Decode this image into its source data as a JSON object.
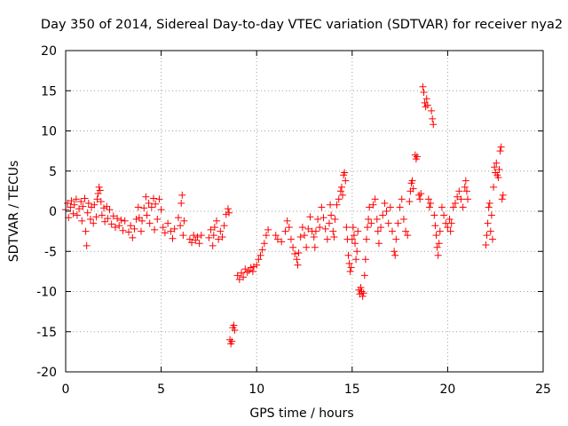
{
  "chart_data": {
    "type": "scatter",
    "title": "Day 350 of 2014, Sidereal Day-to-day VTEC variation (SDTVAR) for receiver nya2",
    "xlabel": "GPS time / hours",
    "ylabel": "SDTVAR / TECUs",
    "xlim": [
      0,
      25
    ],
    "ylim": [
      -20,
      20
    ],
    "xticks": [
      0,
      5,
      10,
      15,
      20,
      25
    ],
    "yticks": [
      -20,
      -15,
      -10,
      -5,
      0,
      5,
      10,
      15,
      20
    ],
    "grid": true,
    "marker": "+",
    "color": "#ff0000",
    "series": [
      {
        "name": "nya2",
        "points": [
          [
            0.0,
            0.2
          ],
          [
            0.1,
            1.0
          ],
          [
            0.15,
            -0.8
          ],
          [
            0.25,
            0.5
          ],
          [
            0.3,
            1.3
          ],
          [
            0.4,
            -0.3
          ],
          [
            0.45,
            0.8
          ],
          [
            0.55,
            1.5
          ],
          [
            0.6,
            -0.5
          ],
          [
            0.7,
            0.3
          ],
          [
            0.8,
            1.2
          ],
          [
            0.85,
            -1.2
          ],
          [
            0.9,
            0.6
          ],
          [
            1.0,
            1.6
          ],
          [
            1.05,
            -2.5
          ],
          [
            1.1,
            -4.3
          ],
          [
            1.15,
            -0.2
          ],
          [
            1.2,
            1.0
          ],
          [
            1.3,
            -1.0
          ],
          [
            1.35,
            0.5
          ],
          [
            1.45,
            -1.5
          ],
          [
            1.5,
            0.8
          ],
          [
            1.6,
            -0.7
          ],
          [
            1.65,
            1.5
          ],
          [
            1.7,
            2.2
          ],
          [
            1.75,
            3.0
          ],
          [
            1.8,
            2.6
          ],
          [
            1.85,
            1.2
          ],
          [
            1.9,
            -0.5
          ],
          [
            2.0,
            0.4
          ],
          [
            2.05,
            -1.3
          ],
          [
            2.15,
            0.6
          ],
          [
            2.2,
            -0.9
          ],
          [
            2.3,
            0.2
          ],
          [
            2.4,
            -1.6
          ],
          [
            2.5,
            -0.6
          ],
          [
            2.6,
            -2.0
          ],
          [
            2.7,
            -0.9
          ],
          [
            2.8,
            -1.8
          ],
          [
            2.9,
            -1.1
          ],
          [
            3.0,
            -2.4
          ],
          [
            3.1,
            -1.2
          ],
          [
            3.3,
            -2.6
          ],
          [
            3.4,
            -1.8
          ],
          [
            3.5,
            -3.3
          ],
          [
            3.6,
            -2.2
          ],
          [
            3.7,
            -1.0
          ],
          [
            3.8,
            0.5
          ],
          [
            3.85,
            -0.8
          ],
          [
            3.95,
            -2.5
          ],
          [
            4.0,
            -1.2
          ],
          [
            4.1,
            0.4
          ],
          [
            4.2,
            1.8
          ],
          [
            4.25,
            -0.5
          ],
          [
            4.35,
            1.0
          ],
          [
            4.4,
            -1.5
          ],
          [
            4.5,
            0.5
          ],
          [
            4.6,
            1.6
          ],
          [
            4.65,
            -2.3
          ],
          [
            4.7,
            0.9
          ],
          [
            4.8,
            -1.0
          ],
          [
            4.9,
            1.5
          ],
          [
            5.0,
            0.2
          ],
          [
            5.1,
            -2.0
          ],
          [
            5.2,
            -2.7
          ],
          [
            5.35,
            -1.5
          ],
          [
            5.5,
            -2.5
          ],
          [
            5.6,
            -3.4
          ],
          [
            5.7,
            -2.2
          ],
          [
            5.9,
            -0.8
          ],
          [
            6.0,
            -1.8
          ],
          [
            6.05,
            1.0
          ],
          [
            6.1,
            2.0
          ],
          [
            6.15,
            -3.0
          ],
          [
            6.2,
            -1.2
          ],
          [
            6.5,
            -3.5
          ],
          [
            6.6,
            -3.9
          ],
          [
            6.7,
            -3.0
          ],
          [
            6.8,
            -3.6
          ],
          [
            6.9,
            -3.2
          ],
          [
            7.0,
            -4.0
          ],
          [
            7.1,
            -3.0
          ],
          [
            7.5,
            -3.3
          ],
          [
            7.6,
            -2.3
          ],
          [
            7.7,
            -4.3
          ],
          [
            7.75,
            -3.0
          ],
          [
            7.8,
            -2.0
          ],
          [
            7.9,
            -1.2
          ],
          [
            8.0,
            -3.5
          ],
          [
            8.1,
            -2.5
          ],
          [
            8.2,
            -3.2
          ],
          [
            8.3,
            -1.8
          ],
          [
            8.4,
            -0.4
          ],
          [
            8.5,
            0.3
          ],
          [
            8.55,
            -0.2
          ],
          [
            8.6,
            -16.0
          ],
          [
            8.65,
            -16.5
          ],
          [
            8.7,
            -16.2
          ],
          [
            8.75,
            -14.5
          ],
          [
            8.8,
            -14.2
          ],
          [
            8.85,
            -14.8
          ],
          [
            9.0,
            -8.0
          ],
          [
            9.1,
            -8.5
          ],
          [
            9.2,
            -7.7
          ],
          [
            9.3,
            -8.2
          ],
          [
            9.4,
            -7.2
          ],
          [
            9.5,
            -7.6
          ],
          [
            9.6,
            -7.4
          ],
          [
            9.7,
            -7.0
          ],
          [
            9.8,
            -7.5
          ],
          [
            9.85,
            -6.9
          ],
          [
            10.0,
            -6.7
          ],
          [
            10.1,
            -6.0
          ],
          [
            10.2,
            -5.5
          ],
          [
            10.3,
            -4.8
          ],
          [
            10.4,
            -4.0
          ],
          [
            10.5,
            -3.0
          ],
          [
            10.6,
            -2.3
          ],
          [
            11.0,
            -3.0
          ],
          [
            11.1,
            -3.5
          ],
          [
            11.3,
            -3.8
          ],
          [
            11.5,
            -2.5
          ],
          [
            11.6,
            -1.2
          ],
          [
            11.7,
            -2.0
          ],
          [
            11.8,
            -3.5
          ],
          [
            11.9,
            -4.5
          ],
          [
            12.0,
            -5.3
          ],
          [
            12.1,
            -6.0
          ],
          [
            12.15,
            -6.7
          ],
          [
            12.2,
            -5.2
          ],
          [
            12.3,
            -3.2
          ],
          [
            12.4,
            -2.0
          ],
          [
            12.5,
            -3.0
          ],
          [
            12.6,
            -4.5
          ],
          [
            12.7,
            -2.2
          ],
          [
            12.8,
            -0.7
          ],
          [
            12.9,
            -2.5
          ],
          [
            13.0,
            -3.2
          ],
          [
            13.05,
            -4.5
          ],
          [
            13.1,
            -2.5
          ],
          [
            13.2,
            -1.0
          ],
          [
            13.3,
            -2.0
          ],
          [
            13.4,
            0.5
          ],
          [
            13.5,
            -0.8
          ],
          [
            13.6,
            -2.2
          ],
          [
            13.7,
            -3.5
          ],
          [
            13.8,
            -1.5
          ],
          [
            13.85,
            0.8
          ],
          [
            13.9,
            -0.5
          ],
          [
            14.0,
            -2.5
          ],
          [
            14.05,
            -3.2
          ],
          [
            14.1,
            -1.0
          ],
          [
            14.2,
            0.8
          ],
          [
            14.3,
            1.5
          ],
          [
            14.4,
            2.5
          ],
          [
            14.45,
            3.0
          ],
          [
            14.5,
            2.0
          ],
          [
            14.55,
            4.5
          ],
          [
            14.6,
            4.8
          ],
          [
            14.65,
            3.8
          ],
          [
            14.7,
            -2.0
          ],
          [
            14.75,
            -3.5
          ],
          [
            14.8,
            -5.5
          ],
          [
            14.85,
            -6.5
          ],
          [
            14.9,
            -7.5
          ],
          [
            14.95,
            -7.0
          ],
          [
            15.0,
            -3.5
          ],
          [
            15.05,
            -2.0
          ],
          [
            15.1,
            -3.0
          ],
          [
            15.15,
            -4.0
          ],
          [
            15.2,
            -6.0
          ],
          [
            15.25,
            -5.0
          ],
          [
            15.3,
            -2.5
          ],
          [
            15.35,
            -9.8
          ],
          [
            15.4,
            -10.3
          ],
          [
            15.45,
            -9.5
          ],
          [
            15.5,
            -10.0
          ],
          [
            15.55,
            -10.6
          ],
          [
            15.6,
            -10.2
          ],
          [
            15.65,
            -8.0
          ],
          [
            15.7,
            -6.0
          ],
          [
            15.75,
            -3.5
          ],
          [
            15.8,
            -2.0
          ],
          [
            15.85,
            -1.0
          ],
          [
            15.9,
            0.5
          ],
          [
            16.0,
            -1.5
          ],
          [
            16.1,
            0.8
          ],
          [
            16.2,
            1.5
          ],
          [
            16.3,
            -1.0
          ],
          [
            16.35,
            -2.5
          ],
          [
            16.4,
            -4.0
          ],
          [
            16.5,
            -2.0
          ],
          [
            16.6,
            -0.5
          ],
          [
            16.7,
            1.0
          ],
          [
            16.8,
            0.0
          ],
          [
            16.9,
            -1.5
          ],
          [
            17.0,
            0.5
          ],
          [
            17.1,
            -2.5
          ],
          [
            17.2,
            -5.0
          ],
          [
            17.25,
            -5.5
          ],
          [
            17.3,
            -3.5
          ],
          [
            17.4,
            -1.5
          ],
          [
            17.5,
            0.5
          ],
          [
            17.6,
            1.5
          ],
          [
            17.7,
            -1.0
          ],
          [
            17.8,
            -2.5
          ],
          [
            17.9,
            -3.0
          ],
          [
            18.0,
            1.2
          ],
          [
            18.05,
            2.5
          ],
          [
            18.1,
            3.5
          ],
          [
            18.15,
            3.8
          ],
          [
            18.2,
            2.8
          ],
          [
            18.3,
            7.0
          ],
          [
            18.35,
            6.5
          ],
          [
            18.4,
            6.8
          ],
          [
            18.5,
            2.0
          ],
          [
            18.55,
            1.5
          ],
          [
            18.6,
            2.2
          ],
          [
            18.7,
            15.5
          ],
          [
            18.75,
            14.8
          ],
          [
            18.8,
            13.5
          ],
          [
            18.85,
            13.0
          ],
          [
            18.9,
            14.0
          ],
          [
            18.95,
            13.2
          ],
          [
            19.0,
            1.5
          ],
          [
            19.05,
            0.5
          ],
          [
            19.1,
            1.0
          ],
          [
            19.15,
            12.5
          ],
          [
            19.2,
            11.5
          ],
          [
            19.25,
            10.8
          ],
          [
            19.3,
            -0.5
          ],
          [
            19.35,
            -1.8
          ],
          [
            19.4,
            -3.0
          ],
          [
            19.45,
            -4.5
          ],
          [
            19.5,
            -5.5
          ],
          [
            19.55,
            -4.0
          ],
          [
            19.6,
            -2.5
          ],
          [
            19.7,
            0.5
          ],
          [
            19.8,
            -0.5
          ],
          [
            19.9,
            -1.5
          ],
          [
            20.0,
            -2.0
          ],
          [
            20.1,
            -1.0
          ],
          [
            20.15,
            -2.5
          ],
          [
            20.2,
            -1.5
          ],
          [
            20.3,
            0.5
          ],
          [
            20.4,
            1.0
          ],
          [
            20.5,
            1.8
          ],
          [
            20.6,
            2.5
          ],
          [
            20.7,
            1.5
          ],
          [
            20.8,
            0.5
          ],
          [
            20.9,
            3.0
          ],
          [
            20.95,
            3.8
          ],
          [
            21.0,
            2.5
          ],
          [
            21.05,
            1.5
          ],
          [
            22.0,
            -4.2
          ],
          [
            22.05,
            -3.0
          ],
          [
            22.1,
            -1.5
          ],
          [
            22.15,
            0.5
          ],
          [
            22.2,
            1.0
          ],
          [
            22.25,
            -2.5
          ],
          [
            22.3,
            -0.5
          ],
          [
            22.35,
            -3.5
          ],
          [
            22.4,
            3.0
          ],
          [
            22.45,
            5.5
          ],
          [
            22.5,
            4.8
          ],
          [
            22.55,
            6.0
          ],
          [
            22.6,
            4.5
          ],
          [
            22.65,
            4.2
          ],
          [
            22.7,
            5.2
          ],
          [
            22.75,
            7.5
          ],
          [
            22.8,
            8.0
          ],
          [
            22.85,
            1.5
          ],
          [
            22.9,
            2.0
          ]
        ]
      }
    ]
  }
}
